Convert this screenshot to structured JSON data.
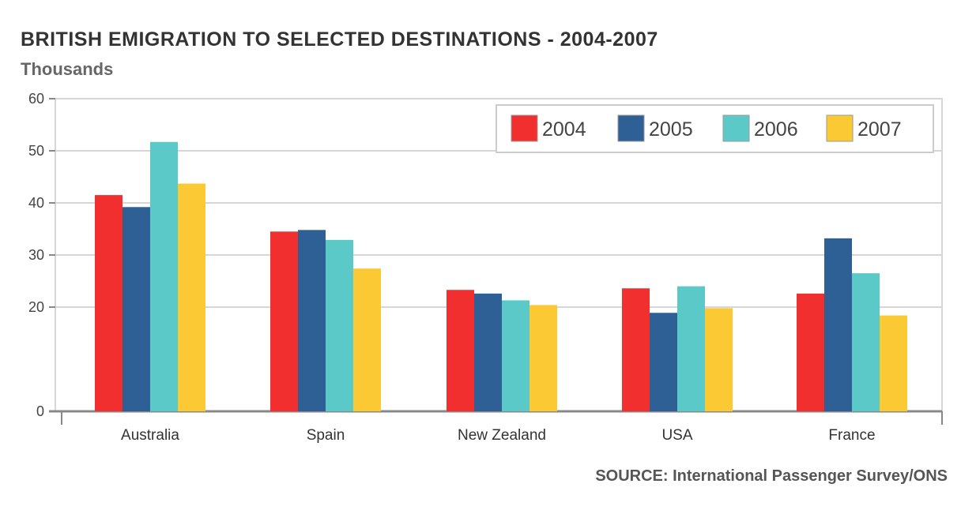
{
  "chart_data": {
    "type": "bar",
    "title": "BRITISH EMIGRATION TO SELECTED DESTINATIONS - 2004-2007",
    "ylabel": "Thousands",
    "xlabel": "",
    "ylim": [
      0,
      60
    ],
    "yticks": [
      0,
      20,
      30,
      40,
      50,
      60
    ],
    "grid": true,
    "legend_position": "top-right",
    "categories": [
      "Australia",
      "Spain",
      "New Zealand",
      "USA",
      "France"
    ],
    "series": [
      {
        "name": "2004",
        "color": "#f22f2f",
        "values": [
          41.5,
          34.5,
          23.3,
          23.6,
          22.6
        ]
      },
      {
        "name": "2005",
        "color": "#2e6096",
        "values": [
          39.2,
          34.8,
          22.6,
          18.9,
          33.2
        ]
      },
      {
        "name": "2006",
        "color": "#5cc9c9",
        "values": [
          51.7,
          32.9,
          21.3,
          24.0,
          26.5
        ]
      },
      {
        "name": "2007",
        "color": "#fbc933",
        "values": [
          43.7,
          27.4,
          20.4,
          19.8,
          18.4
        ]
      }
    ],
    "source": "SOURCE: International Passenger Survey/ONS"
  }
}
